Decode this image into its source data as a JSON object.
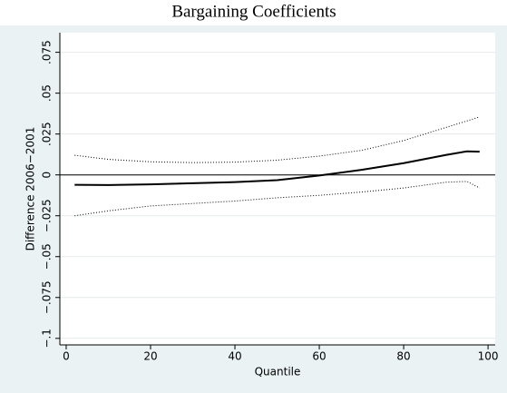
{
  "chart_data": {
    "type": "line",
    "title": "Bargaining Coefficients",
    "x_label": "Quantile",
    "y_label": "Difference 2006−2001",
    "x": [
      2,
      10,
      20,
      30,
      40,
      50,
      60,
      70,
      80,
      90,
      95,
      98
    ],
    "series": [
      {
        "color": "#000000",
        "style": "solid",
        "values": [
          -0.0061,
          -0.0062,
          -0.0058,
          -0.0051,
          -0.0044,
          -0.0032,
          -0.0004,
          0.0031,
          0.0072,
          0.0122,
          0.0144,
          0.0142
        ]
      },
      {
        "color": "#000000",
        "style": "dotted",
        "values": [
          0.012,
          0.0095,
          0.008,
          0.0075,
          0.0078,
          0.009,
          0.0115,
          0.015,
          0.021,
          0.029,
          0.033,
          0.0355
        ]
      },
      {
        "color": "#000000",
        "style": "dotted",
        "values": [
          -0.025,
          -0.022,
          -0.019,
          -0.0175,
          -0.016,
          -0.014,
          -0.0125,
          -0.0105,
          -0.008,
          -0.0045,
          -0.004,
          -0.008
        ]
      }
    ],
    "xlim": [
      -1.5,
      101.7
    ],
    "ylim": [
      -0.104,
      0.087
    ],
    "xticks": [
      0,
      20,
      40,
      60,
      80,
      100
    ],
    "yticks": [
      {
        "value": -0.1,
        "label": "−.1"
      },
      {
        "value": -0.075,
        "label": "−.075"
      },
      {
        "value": -0.05,
        "label": "−.05"
      },
      {
        "value": -0.025,
        "label": "−.025"
      },
      0,
      {
        "value": 0.025,
        "label": ".025"
      },
      {
        "value": 0.05,
        "label": ".05"
      },
      {
        "value": 0.075,
        "label": ".075"
      }
    ],
    "hline": 0,
    "grid": true
  }
}
